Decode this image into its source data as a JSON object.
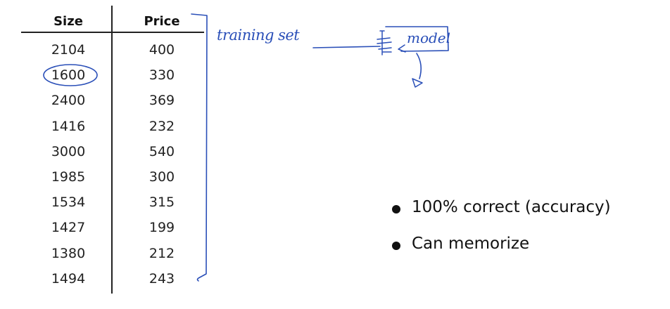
{
  "table": {
    "headers": {
      "size": "Size",
      "price": "Price"
    },
    "rows": [
      {
        "size": "2104",
        "price": "400"
      },
      {
        "size": "1600",
        "price": "330"
      },
      {
        "size": "2400",
        "price": "369"
      },
      {
        "size": "1416",
        "price": "232"
      },
      {
        "size": "3000",
        "price": "540"
      },
      {
        "size": "1985",
        "price": "300"
      },
      {
        "size": "1534",
        "price": "315"
      },
      {
        "size": "1427",
        "price": "199"
      },
      {
        "size": "1380",
        "price": "212"
      },
      {
        "size": "1494",
        "price": "243"
      }
    ]
  },
  "annotations": {
    "training_set": "training set",
    "model": "model",
    "ink_color": "#2a4fb8"
  },
  "bullets": [
    "100% correct (accuracy)",
    "Can memorize"
  ]
}
